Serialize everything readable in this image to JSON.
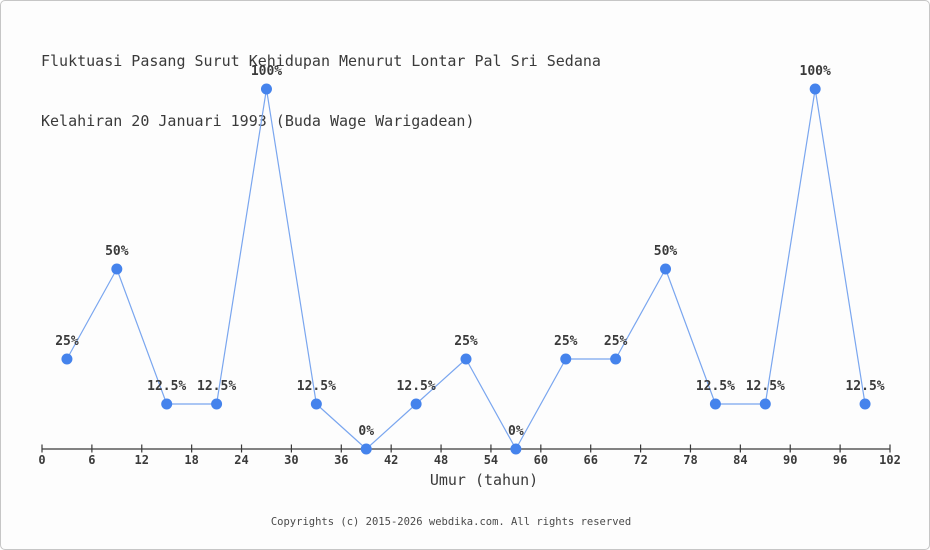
{
  "page": {
    "footer": "Copyrights (c) 2015-2026 webdika.com. All rights reserved"
  },
  "chart_data": {
    "type": "line",
    "title": "Fluktuasi Pasang Surut Kehidupan Menurut Lontar Pal Sri Sedana",
    "subtitle": "Kelahiran 20 Januari 1993 (Buda Wage Warigadean)",
    "xlabel": "Umur (tahun)",
    "x": [
      3,
      9,
      15,
      21,
      27,
      33,
      39,
      45,
      51,
      57,
      63,
      69,
      75,
      81,
      87,
      93,
      99
    ],
    "values": [
      25,
      50,
      12.5,
      12.5,
      100,
      12.5,
      0,
      12.5,
      25,
      0,
      25,
      25,
      50,
      12.5,
      12.5,
      100,
      12.5
    ],
    "point_labels": [
      "25%",
      "50%",
      "12.5%",
      "12.5%",
      "100%",
      "12.5%",
      "0%",
      "12.5%",
      "25%",
      "0%",
      "25%",
      "25%",
      "50%",
      "12.5%",
      "12.5%",
      "100%",
      "12.5%"
    ],
    "x_ticks": [
      0,
      6,
      12,
      18,
      24,
      30,
      36,
      42,
      48,
      54,
      60,
      66,
      72,
      78,
      84,
      90,
      96,
      102
    ],
    "xlim": [
      0,
      102
    ],
    "ylim": [
      0,
      100
    ],
    "grid": false,
    "legend": "none",
    "colors": {
      "background": "#fdfdfd",
      "line": "#7aa6ef",
      "marker": "#4583ec",
      "axis": "#3a3a3a",
      "text": "#3a3a3a",
      "footer": "#4a4a4a"
    }
  }
}
